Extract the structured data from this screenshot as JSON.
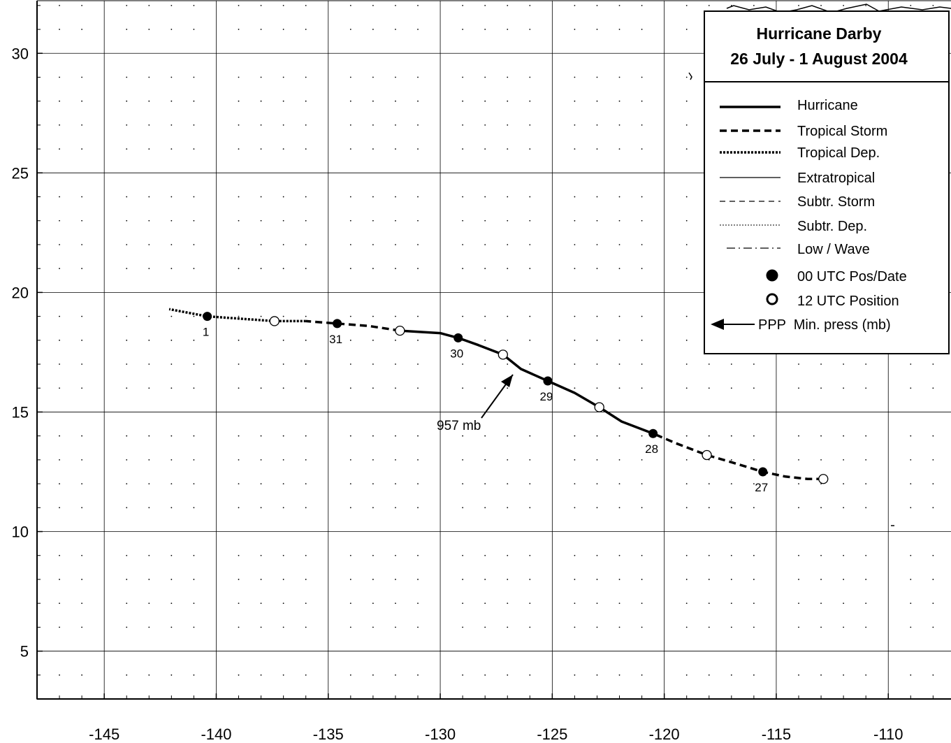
{
  "legend": {
    "title": "Hurricane Darby",
    "subtitle": "26 July - 1 August 2004",
    "items": [
      {
        "label": "Hurricane",
        "style": "hurricane"
      },
      {
        "label": "Tropical Storm",
        "style": "tropical-storm"
      },
      {
        "label": "Tropical Dep.",
        "style": "tropical-dep"
      },
      {
        "label": "Extratropical",
        "style": "extratropical"
      },
      {
        "label": "Subtr. Storm",
        "style": "subtr-storm"
      },
      {
        "label": "Subtr. Dep.",
        "style": "subtr-dep"
      },
      {
        "label": "Low / Wave",
        "style": "low-wave"
      },
      {
        "label": "00 UTC Pos/Date",
        "style": "marker-00"
      },
      {
        "label": "12 UTC Position",
        "style": "marker-12"
      }
    ],
    "pressure_key": "PPP  Min. press (mb)"
  },
  "axes": {
    "x_ticks": [
      -145,
      -140,
      -135,
      -130,
      -125,
      -120,
      -115,
      -110
    ],
    "y_ticks": [
      5,
      10,
      15,
      20,
      25,
      30
    ],
    "xlim": [
      -148,
      -107.2
    ],
    "ylim": [
      3,
      32.2
    ]
  },
  "chart_data": {
    "type": "scatter",
    "title": "Hurricane Darby",
    "subtitle": "26 July - 1 August 2004",
    "xlabel": "",
    "ylabel": "",
    "xlim": [
      -148,
      -107.2
    ],
    "ylim": [
      3,
      32.2
    ],
    "grid": true,
    "legend_position": "top-right",
    "track": [
      {
        "lon": -112.9,
        "lat": 12.2,
        "style": "tropical-storm"
      },
      {
        "lon": -113.6,
        "lat": 12.2,
        "style": "tropical-storm"
      },
      {
        "lon": -114.6,
        "lat": 12.3,
        "style": "tropical-storm"
      },
      {
        "lon": -115.6,
        "lat": 12.5,
        "style": "tropical-storm"
      },
      {
        "lon": -117.0,
        "lat": 12.9,
        "style": "tropical-storm"
      },
      {
        "lon": -118.1,
        "lat": 13.2,
        "style": "tropical-storm"
      },
      {
        "lon": -119.5,
        "lat": 13.7,
        "style": "tropical-storm"
      },
      {
        "lon": -120.5,
        "lat": 14.1,
        "style": "hurricane"
      },
      {
        "lon": -121.9,
        "lat": 14.6,
        "style": "hurricane"
      },
      {
        "lon": -122.9,
        "lat": 15.2,
        "style": "hurricane"
      },
      {
        "lon": -124.0,
        "lat": 15.8,
        "style": "hurricane"
      },
      {
        "lon": -125.2,
        "lat": 16.3,
        "style": "hurricane"
      },
      {
        "lon": -126.4,
        "lat": 16.8,
        "style": "hurricane"
      },
      {
        "lon": -127.2,
        "lat": 17.4,
        "style": "hurricane"
      },
      {
        "lon": -128.3,
        "lat": 17.8,
        "style": "hurricane"
      },
      {
        "lon": -129.2,
        "lat": 18.1,
        "style": "hurricane"
      },
      {
        "lon": -130.0,
        "lat": 18.3,
        "style": "hurricane"
      },
      {
        "lon": -131.8,
        "lat": 18.4,
        "style": "tropical-storm"
      },
      {
        "lon": -133.2,
        "lat": 18.6,
        "style": "tropical-storm"
      },
      {
        "lon": -134.6,
        "lat": 18.7,
        "style": "tropical-storm"
      },
      {
        "lon": -136.0,
        "lat": 18.8,
        "style": "tropical-dep"
      },
      {
        "lon": -137.4,
        "lat": 18.8,
        "style": "tropical-dep"
      },
      {
        "lon": -138.9,
        "lat": 18.9,
        "style": "tropical-dep"
      },
      {
        "lon": -140.4,
        "lat": 19.0,
        "style": "tropical-dep"
      },
      {
        "lon": -142.1,
        "lat": 19.3,
        "style": "tropical-dep"
      }
    ],
    "positions_00utc": [
      {
        "lon": -115.6,
        "lat": 12.5,
        "date": "27"
      },
      {
        "lon": -120.5,
        "lat": 14.1,
        "date": "28"
      },
      {
        "lon": -125.2,
        "lat": 16.3,
        "date": "29"
      },
      {
        "lon": -129.2,
        "lat": 18.1,
        "date": "30"
      },
      {
        "lon": -134.6,
        "lat": 18.7,
        "date": "31"
      },
      {
        "lon": -140.4,
        "lat": 19.0,
        "date": "1"
      }
    ],
    "positions_12utc": [
      {
        "lon": -112.9,
        "lat": 12.2
      },
      {
        "lon": -118.1,
        "lat": 13.2
      },
      {
        "lon": -122.9,
        "lat": 15.2
      },
      {
        "lon": -127.2,
        "lat": 17.4
      },
      {
        "lon": -131.8,
        "lat": 18.4
      },
      {
        "lon": -137.4,
        "lat": 18.8
      }
    ],
    "min_pressure": {
      "label": "957 mb",
      "lon": -126.6,
      "lat": 16.8
    }
  }
}
